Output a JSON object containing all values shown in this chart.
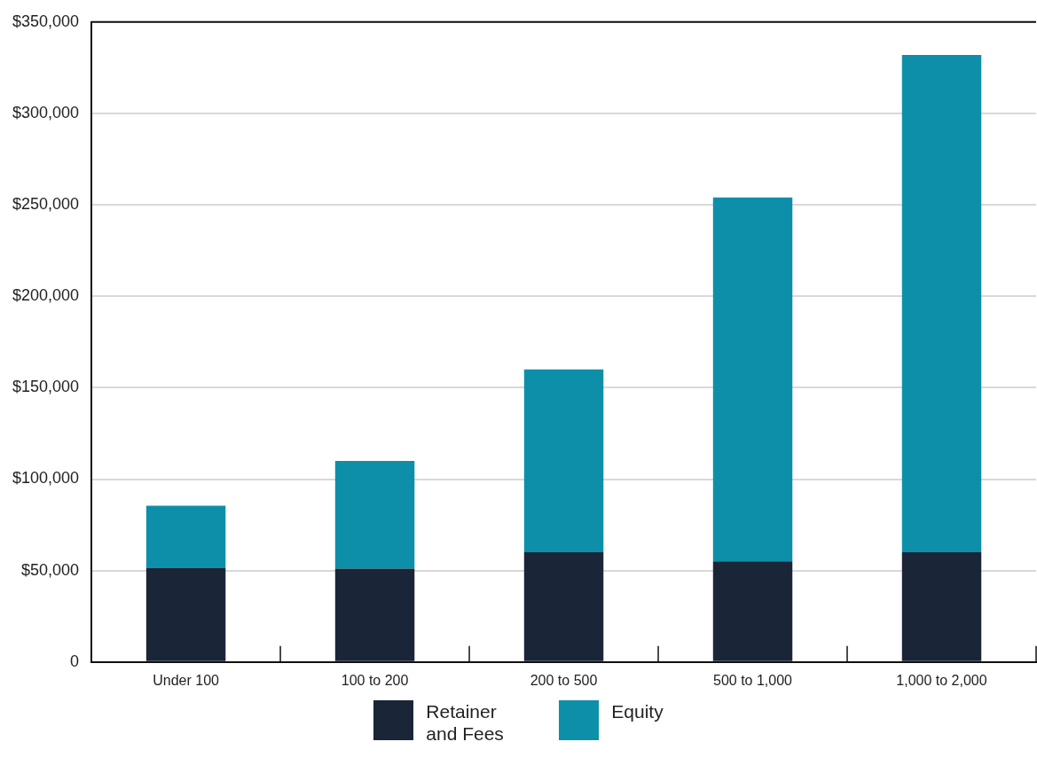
{
  "chart_data": {
    "type": "bar",
    "stacked": true,
    "categories": [
      "Under 100",
      "100 to 200",
      "200 to 500",
      "500 to 1,000",
      "1,000 to 2,000"
    ],
    "series": [
      {
        "name": "Retainer and Fees",
        "color": "#1a2538",
        "values": [
          51500,
          51000,
          60000,
          55000,
          60000
        ]
      },
      {
        "name": "Equity",
        "color": "#0e8fa9",
        "values": [
          34000,
          59000,
          100000,
          199000,
          272000
        ]
      }
    ],
    "ylim": [
      0,
      350000
    ],
    "yticks": [
      0,
      {
        "value": 50000,
        "label": "$50,000"
      },
      {
        "value": 100000,
        "label": "$100,000"
      },
      {
        "value": 150000,
        "label": "$150,000"
      },
      {
        "value": 200000,
        "label": "$200,000"
      },
      {
        "value": 250000,
        "label": "$250,000"
      },
      {
        "value": 300000,
        "label": "$300,000"
      },
      {
        "value": 350000,
        "label": "$350,000"
      }
    ],
    "grid": "y",
    "legend": "bottom"
  }
}
